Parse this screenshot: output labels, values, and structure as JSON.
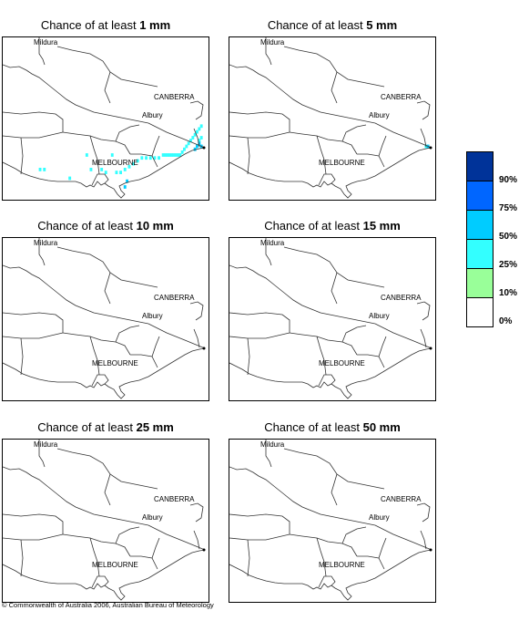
{
  "panels": [
    {
      "title_prefix": "Chance of at least ",
      "title_amount": "1 mm",
      "cells": [
        {
          "lon": 148.1,
          "lat": -37.8,
          "level": 2
        },
        {
          "lon": 148.2,
          "lat": -37.8,
          "level": 2
        },
        {
          "lon": 148.3,
          "lat": -37.8,
          "level": 2
        },
        {
          "lon": 148.4,
          "lat": -37.8,
          "level": 2
        },
        {
          "lon": 148.5,
          "lat": -37.8,
          "level": 2
        },
        {
          "lon": 148.6,
          "lat": -37.8,
          "level": 2
        },
        {
          "lon": 148.7,
          "lat": -37.8,
          "level": 2
        },
        {
          "lon": 148.8,
          "lat": -37.8,
          "level": 2
        },
        {
          "lon": 148.9,
          "lat": -37.8,
          "level": 2
        },
        {
          "lon": 149.0,
          "lat": -37.7,
          "level": 2
        },
        {
          "lon": 149.1,
          "lat": -37.6,
          "level": 2
        },
        {
          "lon": 149.2,
          "lat": -37.5,
          "level": 2
        },
        {
          "lon": 149.3,
          "lat": -37.4,
          "level": 2
        },
        {
          "lon": 149.4,
          "lat": -37.3,
          "level": 2
        },
        {
          "lon": 149.5,
          "lat": -37.2,
          "level": 2
        },
        {
          "lon": 149.6,
          "lat": -37.1,
          "level": 2
        },
        {
          "lon": 149.7,
          "lat": -37.0,
          "level": 2
        },
        {
          "lon": 149.8,
          "lat": -36.9,
          "level": 2
        },
        {
          "lon": 149.9,
          "lat": -36.8,
          "level": 2
        },
        {
          "lon": 149.9,
          "lat": -37.2,
          "level": 2
        },
        {
          "lon": 149.8,
          "lat": -37.3,
          "level": 2
        },
        {
          "lon": 149.8,
          "lat": -37.4,
          "level": 3
        },
        {
          "lon": 149.9,
          "lat": -37.5,
          "level": 3
        },
        {
          "lon": 149.7,
          "lat": -37.5,
          "level": 3
        },
        {
          "lon": 149.6,
          "lat": -37.6,
          "level": 3
        },
        {
          "lon": 145.7,
          "lat": -37.8,
          "level": 2
        },
        {
          "lon": 145.2,
          "lat": -38.3,
          "level": 2
        },
        {
          "lon": 144.7,
          "lat": -38.3,
          "level": 2
        },
        {
          "lon": 145.9,
          "lat": -38.4,
          "level": 2
        },
        {
          "lon": 146.1,
          "lat": -38.4,
          "level": 2
        },
        {
          "lon": 146.3,
          "lat": -38.3,
          "level": 2
        },
        {
          "lon": 146.5,
          "lat": -38.2,
          "level": 2
        },
        {
          "lon": 146.7,
          "lat": -38.1,
          "level": 2
        },
        {
          "lon": 146.9,
          "lat": -38.0,
          "level": 2
        },
        {
          "lon": 147.1,
          "lat": -37.9,
          "level": 2
        },
        {
          "lon": 147.3,
          "lat": -37.9,
          "level": 2
        },
        {
          "lon": 147.5,
          "lat": -37.9,
          "level": 2
        },
        {
          "lon": 147.7,
          "lat": -37.9,
          "level": 2
        },
        {
          "lon": 147.9,
          "lat": -37.9,
          "level": 2
        },
        {
          "lon": 146.4,
          "lat": -38.7,
          "level": 3
        },
        {
          "lon": 146.3,
          "lat": -38.9,
          "level": 3
        },
        {
          "lon": 143.7,
          "lat": -38.6,
          "level": 2
        },
        {
          "lon": 142.3,
          "lat": -38.3,
          "level": 2
        },
        {
          "lon": 142.5,
          "lat": -38.3,
          "level": 2
        },
        {
          "lon": 145.4,
          "lat": -38.4,
          "level": 2
        },
        {
          "lon": 144.5,
          "lat": -37.8,
          "level": 2
        }
      ]
    },
    {
      "title_prefix": "Chance of at least ",
      "title_amount": "5 mm",
      "cells": [
        {
          "lon": 149.8,
          "lat": -37.5,
          "level": 2
        },
        {
          "lon": 149.9,
          "lat": -37.5,
          "level": 3
        }
      ]
    },
    {
      "title_prefix": "Chance of at least ",
      "title_amount": "10 mm",
      "cells": []
    },
    {
      "title_prefix": "Chance of at least ",
      "title_amount": "15 mm",
      "cells": []
    },
    {
      "title_prefix": "Chance of at least ",
      "title_amount": "25 mm",
      "cells": []
    },
    {
      "title_prefix": "Chance of at least ",
      "title_amount": "50 mm",
      "cells": []
    }
  ],
  "places": {
    "mildura": "Mildura",
    "canberra": "CANBERRA",
    "albury": "Albury",
    "melbourne": "MELBOURNE"
  },
  "legend": {
    "labels": [
      "90%",
      "75%",
      "50%",
      "25%",
      "10%",
      "0%"
    ],
    "colors": [
      "#003399",
      "#0066ff",
      "#00ccff",
      "#33ffff",
      "#99ff99",
      "#ffffff"
    ]
  },
  "copyright": "© Commonwealth of Australia 2006, Australian Bureau of Meteorology"
}
